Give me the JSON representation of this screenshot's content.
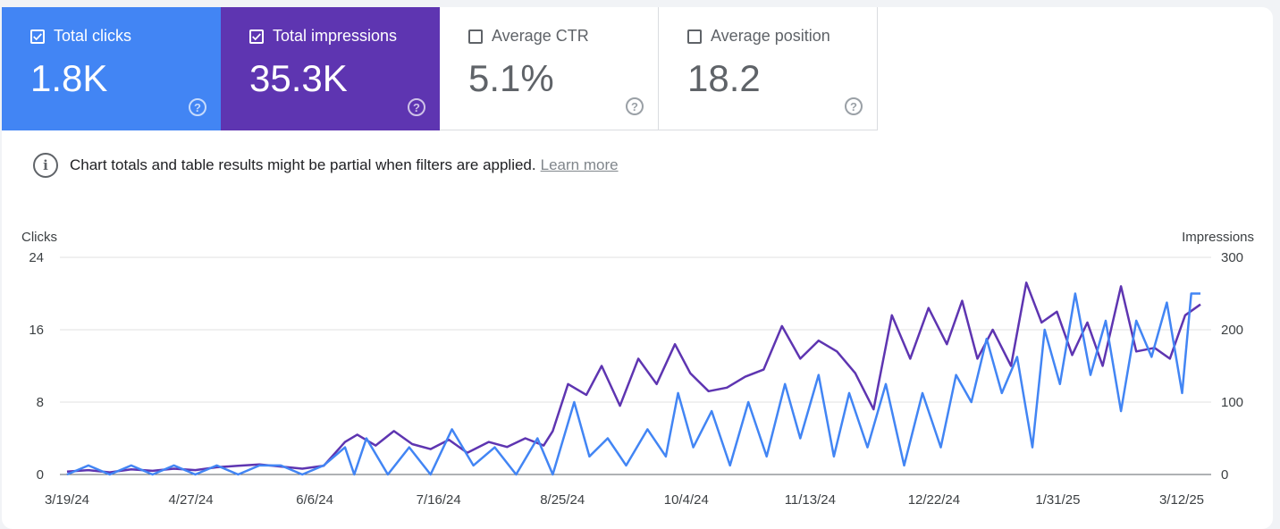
{
  "metrics": [
    {
      "label": "Total clicks",
      "value": "1.8K",
      "checked": true
    },
    {
      "label": "Total impressions",
      "value": "35.3K",
      "checked": true
    },
    {
      "label": "Average CTR",
      "value": "5.1%",
      "checked": false
    },
    {
      "label": "Average position",
      "value": "18.2",
      "checked": false
    }
  ],
  "notice": {
    "text": "Chart totals and table results might be partial when filters are applied.",
    "link": "Learn more"
  },
  "colors": {
    "clicks": "#4285f4",
    "impressions": "#5e35b1"
  },
  "chart_data": {
    "type": "line",
    "xlabel": "",
    "left_axis": {
      "label": "Clicks",
      "ticks": [
        0,
        8,
        16,
        24
      ],
      "range": [
        0,
        24
      ]
    },
    "right_axis": {
      "label": "Impressions",
      "ticks": [
        0,
        100,
        200,
        300
      ],
      "range": [
        0,
        300
      ]
    },
    "x_range": [
      "2024-03-19",
      "2025-03-25"
    ],
    "x_tick_labels": [
      "3/19/24",
      "4/27/24",
      "6/6/24",
      "7/16/24",
      "8/25/24",
      "10/4/24",
      "11/13/24",
      "12/22/24",
      "1/31/25",
      "3/12/25"
    ],
    "grid": true,
    "series": [
      {
        "name": "Clicks",
        "axis": "left",
        "color": "#4285f4",
        "points": [
          [
            "2024-03-19",
            0
          ],
          [
            "2024-03-26",
            1
          ],
          [
            "2024-04-02",
            0
          ],
          [
            "2024-04-09",
            1
          ],
          [
            "2024-04-16",
            0
          ],
          [
            "2024-04-23",
            1
          ],
          [
            "2024-04-30",
            0
          ],
          [
            "2024-05-07",
            1
          ],
          [
            "2024-05-14",
            0
          ],
          [
            "2024-05-21",
            1
          ],
          [
            "2024-05-28",
            1
          ],
          [
            "2024-06-04",
            0
          ],
          [
            "2024-06-11",
            1
          ],
          [
            "2024-06-18",
            3
          ],
          [
            "2024-06-21",
            0
          ],
          [
            "2024-06-25",
            4
          ],
          [
            "2024-07-02",
            0
          ],
          [
            "2024-07-09",
            3
          ],
          [
            "2024-07-16",
            0
          ],
          [
            "2024-07-23",
            5
          ],
          [
            "2024-07-30",
            1
          ],
          [
            "2024-08-06",
            3
          ],
          [
            "2024-08-13",
            0
          ],
          [
            "2024-08-20",
            4
          ],
          [
            "2024-08-25",
            0
          ],
          [
            "2024-09-01",
            8
          ],
          [
            "2024-09-06",
            2
          ],
          [
            "2024-09-12",
            4
          ],
          [
            "2024-09-18",
            1
          ],
          [
            "2024-09-25",
            5
          ],
          [
            "2024-10-01",
            2
          ],
          [
            "2024-10-05",
            9
          ],
          [
            "2024-10-10",
            3
          ],
          [
            "2024-10-16",
            7
          ],
          [
            "2024-10-22",
            1
          ],
          [
            "2024-10-28",
            8
          ],
          [
            "2024-11-03",
            2
          ],
          [
            "2024-11-09",
            10
          ],
          [
            "2024-11-14",
            4
          ],
          [
            "2024-11-20",
            11
          ],
          [
            "2024-11-25",
            2
          ],
          [
            "2024-11-30",
            9
          ],
          [
            "2024-12-06",
            3
          ],
          [
            "2024-12-12",
            10
          ],
          [
            "2024-12-18",
            1
          ],
          [
            "2024-12-24",
            9
          ],
          [
            "2024-12-30",
            3
          ],
          [
            "2025-01-04",
            11
          ],
          [
            "2025-01-09",
            8
          ],
          [
            "2025-01-14",
            15
          ],
          [
            "2025-01-19",
            9
          ],
          [
            "2025-01-24",
            13
          ],
          [
            "2025-01-29",
            3
          ],
          [
            "2025-02-02",
            16
          ],
          [
            "2025-02-07",
            10
          ],
          [
            "2025-02-12",
            20
          ],
          [
            "2025-02-17",
            11
          ],
          [
            "2025-02-22",
            17
          ],
          [
            "2025-02-27",
            7
          ],
          [
            "2025-03-04",
            17
          ],
          [
            "2025-03-09",
            13
          ],
          [
            "2025-03-14",
            19
          ],
          [
            "2025-03-19",
            9
          ],
          [
            "2025-03-22",
            20
          ],
          [
            "2025-03-25",
            20
          ]
        ]
      },
      {
        "name": "Impressions",
        "axis": "right",
        "color": "#5e35b1",
        "points": [
          [
            "2024-03-19",
            4
          ],
          [
            "2024-03-26",
            6
          ],
          [
            "2024-04-02",
            3
          ],
          [
            "2024-04-09",
            7
          ],
          [
            "2024-04-16",
            5
          ],
          [
            "2024-04-23",
            8
          ],
          [
            "2024-04-30",
            6
          ],
          [
            "2024-05-07",
            10
          ],
          [
            "2024-05-14",
            12
          ],
          [
            "2024-05-21",
            14
          ],
          [
            "2024-05-28",
            11
          ],
          [
            "2024-06-04",
            8
          ],
          [
            "2024-06-11",
            12
          ],
          [
            "2024-06-18",
            45
          ],
          [
            "2024-06-22",
            55
          ],
          [
            "2024-06-28",
            40
          ],
          [
            "2024-07-04",
            60
          ],
          [
            "2024-07-10",
            42
          ],
          [
            "2024-07-16",
            35
          ],
          [
            "2024-07-22",
            48
          ],
          [
            "2024-07-28",
            30
          ],
          [
            "2024-08-04",
            45
          ],
          [
            "2024-08-10",
            38
          ],
          [
            "2024-08-16",
            50
          ],
          [
            "2024-08-22",
            40
          ],
          [
            "2024-08-25",
            60
          ],
          [
            "2024-08-30",
            125
          ],
          [
            "2024-09-05",
            110
          ],
          [
            "2024-09-10",
            150
          ],
          [
            "2024-09-16",
            95
          ],
          [
            "2024-09-22",
            160
          ],
          [
            "2024-09-28",
            125
          ],
          [
            "2024-10-04",
            180
          ],
          [
            "2024-10-09",
            140
          ],
          [
            "2024-10-15",
            115
          ],
          [
            "2024-10-21",
            120
          ],
          [
            "2024-10-27",
            135
          ],
          [
            "2024-11-02",
            145
          ],
          [
            "2024-11-08",
            205
          ],
          [
            "2024-11-14",
            160
          ],
          [
            "2024-11-20",
            185
          ],
          [
            "2024-11-26",
            170
          ],
          [
            "2024-12-02",
            140
          ],
          [
            "2024-12-08",
            90
          ],
          [
            "2024-12-14",
            220
          ],
          [
            "2024-12-20",
            160
          ],
          [
            "2024-12-26",
            230
          ],
          [
            "2025-01-01",
            180
          ],
          [
            "2025-01-06",
            240
          ],
          [
            "2025-01-11",
            160
          ],
          [
            "2025-01-16",
            200
          ],
          [
            "2025-01-22",
            150
          ],
          [
            "2025-01-27",
            265
          ],
          [
            "2025-02-01",
            210
          ],
          [
            "2025-02-06",
            225
          ],
          [
            "2025-02-11",
            165
          ],
          [
            "2025-02-16",
            210
          ],
          [
            "2025-02-21",
            150
          ],
          [
            "2025-02-27",
            260
          ],
          [
            "2025-03-04",
            170
          ],
          [
            "2025-03-10",
            175
          ],
          [
            "2025-03-15",
            160
          ],
          [
            "2025-03-20",
            220
          ],
          [
            "2025-03-25",
            235
          ]
        ]
      }
    ]
  }
}
